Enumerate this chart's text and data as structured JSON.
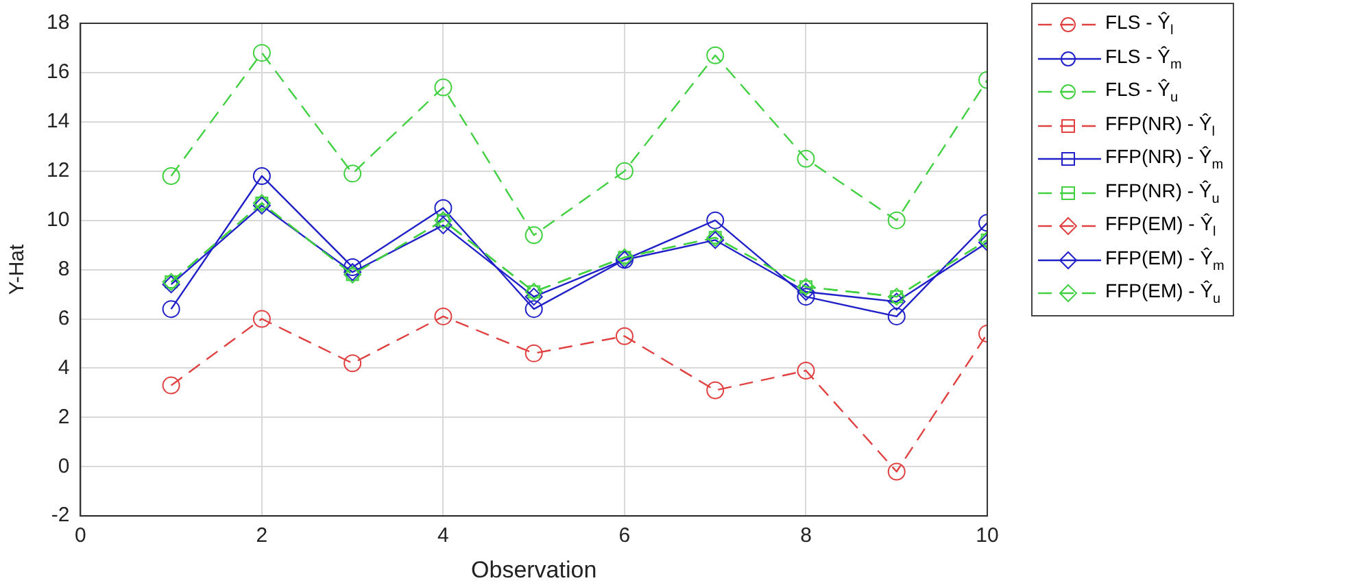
{
  "chart_data": {
    "type": "line",
    "xlabel": "Observation",
    "ylabel": "Y-Hat",
    "x": [
      1,
      2,
      3,
      4,
      5,
      6,
      7,
      8,
      9,
      10
    ],
    "xlim": [
      0,
      10
    ],
    "xticks": [
      0,
      2,
      4,
      6,
      8,
      10
    ],
    "ylim": [
      -2,
      18
    ],
    "yticks": [
      -2,
      0,
      2,
      4,
      6,
      8,
      10,
      12,
      14,
      16,
      18
    ],
    "grid": true,
    "legend": "top right",
    "series": [
      {
        "name": "FLS - Ŷ$_{l}$",
        "color": "#e04040",
        "line_style": "dashed",
        "marker": "circle",
        "values": [
          3.3,
          6.0,
          4.2,
          6.1,
          4.6,
          5.3,
          3.1,
          3.9,
          -0.2,
          5.4
        ]
      },
      {
        "name": "FLS - Ŷ$_{m}$",
        "color": "#2020c8",
        "line_style": "solid",
        "marker": "circle",
        "values": [
          6.4,
          11.8,
          8.1,
          10.5,
          6.4,
          8.4,
          10.0,
          6.9,
          6.1,
          9.9
        ]
      },
      {
        "name": "FLS - Ŷ$_{u}$",
        "color": "#40d040",
        "line_style": "dashed",
        "marker": "circle",
        "values": [
          11.8,
          16.8,
          11.9,
          15.4,
          9.4,
          12.0,
          16.7,
          12.5,
          10.0,
          15.7
        ]
      },
      {
        "name": "FFP(NR) - Ŷ$_{l}$",
        "color": "#e04040",
        "line_style": "dashed",
        "marker": "square",
        "values": [
          null,
          null,
          null,
          null,
          null,
          null,
          null,
          null,
          null,
          null
        ]
      },
      {
        "name": "FFP(NR) - Ŷ$_{m}$",
        "color": "#2020c8",
        "line_style": "solid",
        "marker": "square",
        "values": [
          null,
          null,
          null,
          null,
          null,
          null,
          null,
          null,
          null,
          null
        ]
      },
      {
        "name": "FFP(NR) - Ŷ$_{u}$",
        "color": "#40d040",
        "line_style": "dashed",
        "marker": "square",
        "values": [
          7.5,
          10.7,
          7.8,
          10.0,
          7.1,
          8.5,
          9.3,
          7.3,
          6.9,
          9.2
        ]
      },
      {
        "name": "FFP(EM) - Ŷ$_{l}$",
        "color": "#e04040",
        "line_style": "dashed",
        "marker": "diamond",
        "values": [
          null,
          null,
          null,
          null,
          null,
          null,
          null,
          null,
          null,
          null
        ]
      },
      {
        "name": "FFP(EM) - Ŷ$_{m}$",
        "color": "#2020c8",
        "line_style": "solid",
        "marker": "diamond",
        "values": [
          7.4,
          10.6,
          7.9,
          9.8,
          6.9,
          8.4,
          9.2,
          7.1,
          6.7,
          9.1
        ]
      },
      {
        "name": "FFP(EM) - Ŷ$_{u}$",
        "color": "#40d040",
        "line_style": "dashed",
        "marker": "diamond",
        "values": [
          7.5,
          10.7,
          7.8,
          10.0,
          7.1,
          8.5,
          9.3,
          7.3,
          6.9,
          9.2
        ]
      }
    ]
  }
}
